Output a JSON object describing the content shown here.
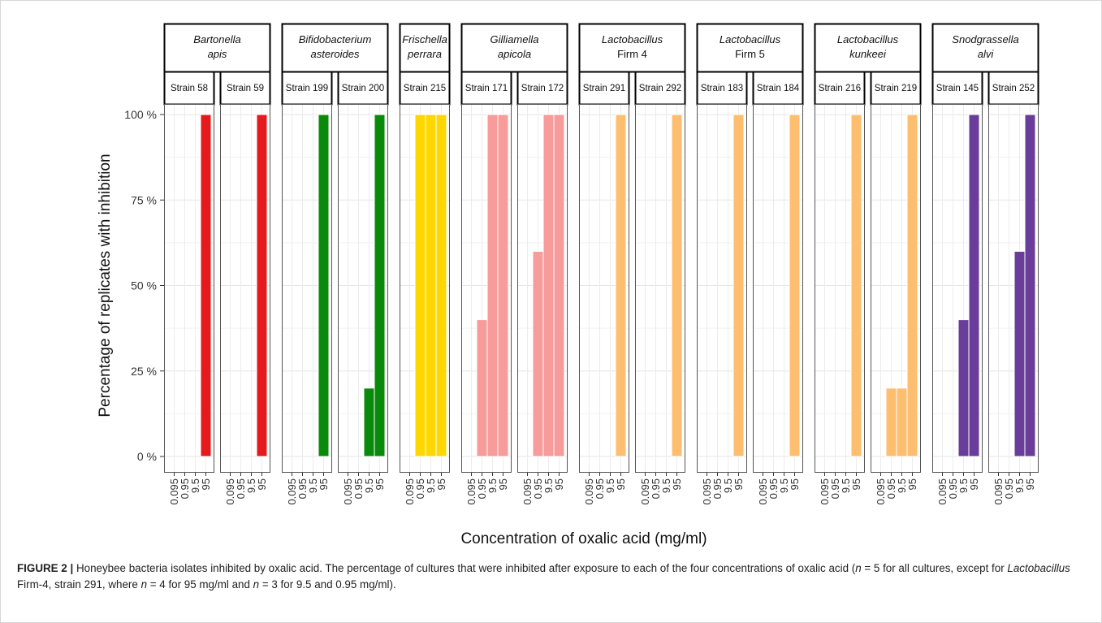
{
  "chart_data": {
    "type": "bar",
    "ylabel": "Percentage of replicates with inhibition",
    "xlabel": "Concentration of oxalic acid (mg/ml)",
    "x_categories": [
      "0.095",
      "0.95",
      "9.5",
      "95"
    ],
    "y_ticks": [
      "0 %",
      "25 %",
      "50 %",
      "75 %",
      "100 %"
    ],
    "ylim": [
      0,
      100
    ],
    "grid": true,
    "groups": [
      {
        "name_lines": [
          "Bartonella",
          "apis"
        ],
        "italic_lines": [
          true,
          true
        ],
        "color": "#e41a1c",
        "strains": [
          {
            "label": "Strain 58",
            "values": [
              0,
              0,
              0,
              100
            ]
          },
          {
            "label": "Strain 59",
            "values": [
              0,
              0,
              0,
              100
            ]
          }
        ]
      },
      {
        "name_lines": [
          "Bifidobacterium",
          "asteroides"
        ],
        "italic_lines": [
          true,
          true
        ],
        "color": "#0a8a0a",
        "strains": [
          {
            "label": "Strain 199",
            "values": [
              0,
              0,
              0,
              100
            ]
          },
          {
            "label": "Strain 200",
            "values": [
              0,
              0,
              20,
              100
            ]
          }
        ]
      },
      {
        "name_lines": [
          "Frischella",
          "perrara"
        ],
        "italic_lines": [
          true,
          true
        ],
        "color": "#ffd700",
        "strains": [
          {
            "label": "Strain 215",
            "values": [
              0,
              100,
              100,
              100
            ]
          }
        ]
      },
      {
        "name_lines": [
          "Gilliamella",
          "apicola"
        ],
        "italic_lines": [
          true,
          true
        ],
        "color": "#f79b9b",
        "strains": [
          {
            "label": "Strain 171",
            "values": [
              0,
              40,
              100,
              100
            ]
          },
          {
            "label": "Strain 172",
            "values": [
              0,
              60,
              100,
              100
            ]
          }
        ]
      },
      {
        "name_lines": [
          "Lactobacillus",
          "Firm 4"
        ],
        "italic_lines": [
          true,
          false
        ],
        "color": "#fdbf6f",
        "strains": [
          {
            "label": "Strain 291",
            "values": [
              0,
              0,
              0,
              100
            ]
          },
          {
            "label": "Strain 292",
            "values": [
              0,
              0,
              0,
              100
            ]
          }
        ]
      },
      {
        "name_lines": [
          "Lactobacillus",
          "Firm 5"
        ],
        "italic_lines": [
          true,
          false
        ],
        "color": "#fdbf6f",
        "strains": [
          {
            "label": "Strain 183",
            "values": [
              0,
              0,
              0,
              100
            ]
          },
          {
            "label": "Strain 184",
            "values": [
              0,
              0,
              0,
              100
            ]
          }
        ]
      },
      {
        "name_lines": [
          "Lactobacillus",
          "kunkeei"
        ],
        "italic_lines": [
          true,
          true
        ],
        "color": "#fdbf6f",
        "strains": [
          {
            "label": "Strain 216",
            "values": [
              0,
              0,
              0,
              100
            ]
          },
          {
            "label": "Strain 219",
            "values": [
              0,
              20,
              20,
              100
            ]
          }
        ]
      },
      {
        "name_lines": [
          "Snodgrassella",
          "alvi"
        ],
        "italic_lines": [
          true,
          true
        ],
        "color": "#6a3d9a",
        "strains": [
          {
            "label": "Strain 145",
            "values": [
              0,
              0,
              40,
              100
            ]
          },
          {
            "label": "Strain 252",
            "values": [
              0,
              0,
              60,
              100
            ]
          }
        ]
      }
    ]
  },
  "caption": {
    "label": "FIGURE 2 |",
    "segments": [
      {
        "text": " Honeybee bacteria isolates inhibited by oxalic acid. The percentage of cultures that were inhibited after exposure to each of the four concentrations of oxalic acid (",
        "italic": false
      },
      {
        "text": "n",
        "italic": true
      },
      {
        "text": " = 5 for all cultures, except for ",
        "italic": false
      },
      {
        "text": "Lactobacillus",
        "italic": true
      },
      {
        "text": " Firm-4, strain 291, where ",
        "italic": false
      },
      {
        "text": "n",
        "italic": true
      },
      {
        "text": " = 4 for 95 mg/ml and ",
        "italic": false
      },
      {
        "text": "n",
        "italic": true
      },
      {
        "text": " = 3 for 9.5 and 0.95 mg/ml).",
        "italic": false
      }
    ]
  }
}
